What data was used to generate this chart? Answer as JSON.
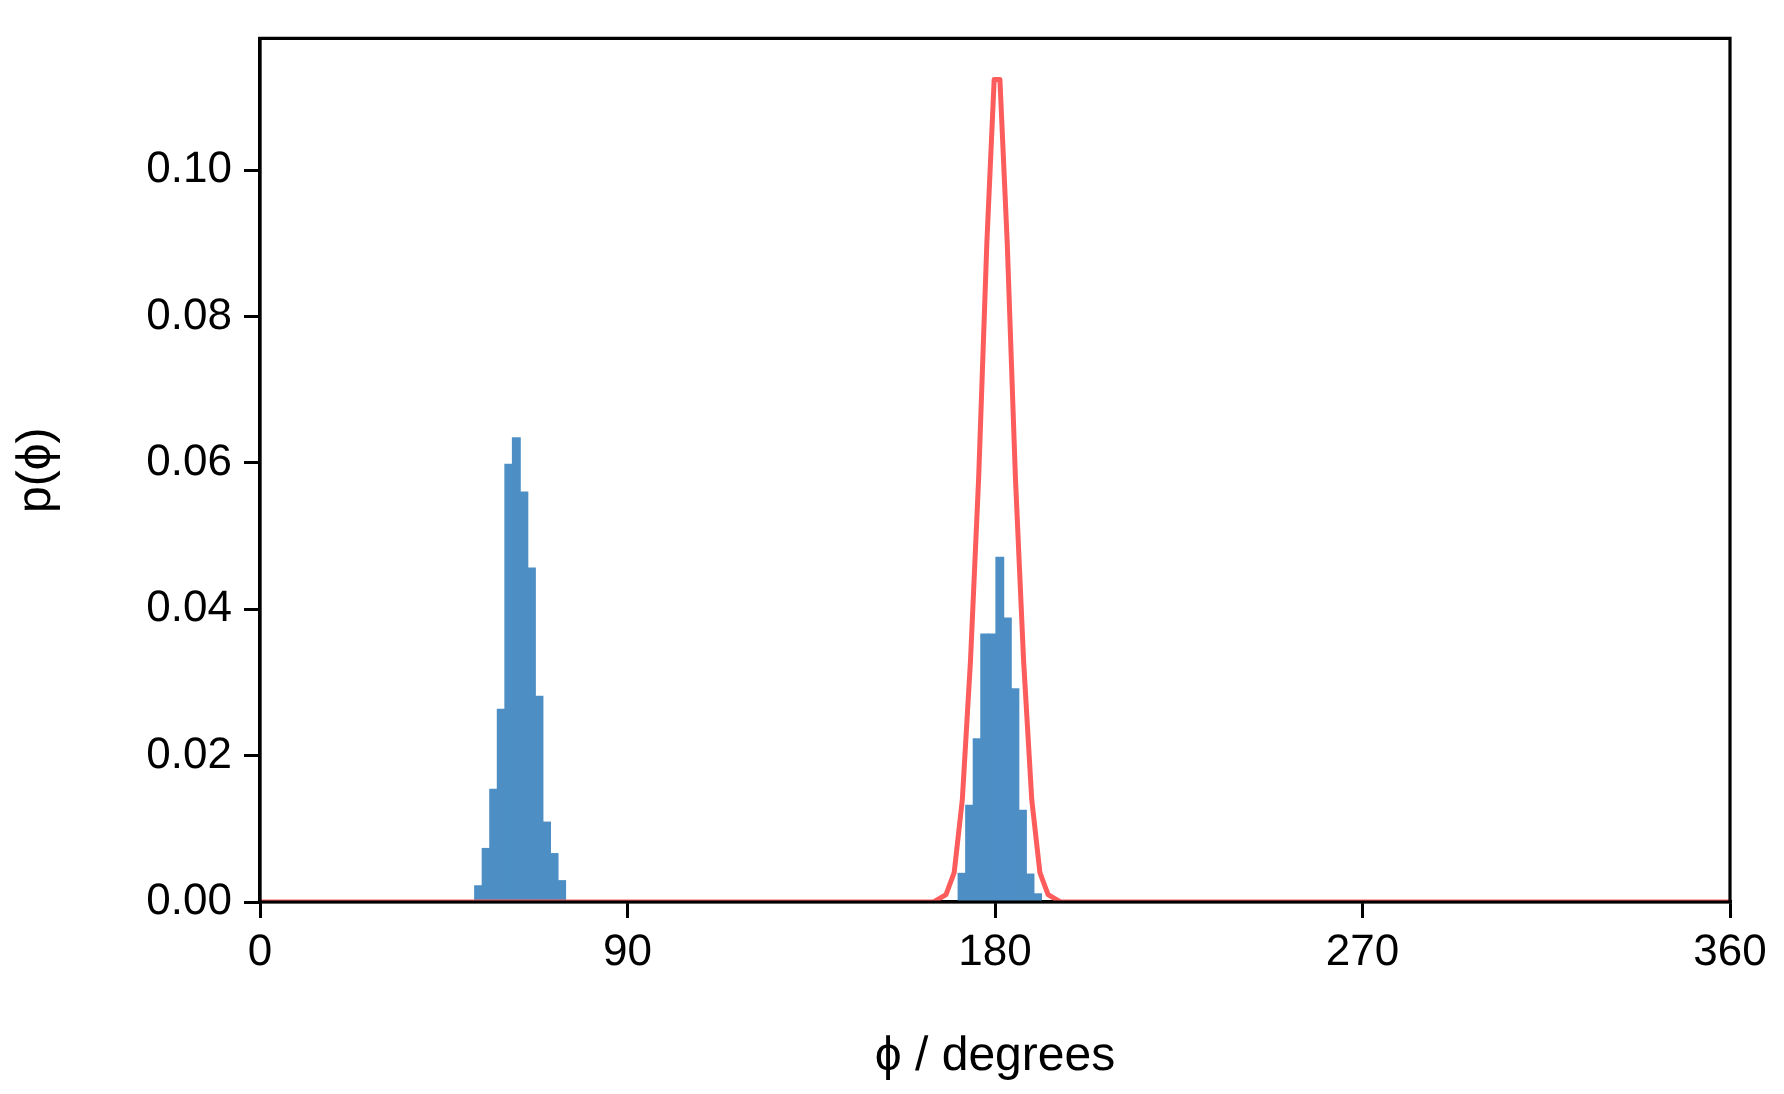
{
  "chart_data": {
    "type": "histogram",
    "xlabel": "ϕ / degrees",
    "ylabel": "p(ϕ)",
    "bins": [
      52.6,
      54.45,
      56.3,
      58.15,
      60,
      61.85,
      63.7,
      65.55,
      67.4,
      69.25,
      71.1,
      72.95,
      74.8,
      76.65,
      78.5,
      80.35,
      82.2,
      84.05,
      85.9,
      87.75,
      89.6,
      91.45,
      93.3,
      95.15,
      97,
      98.85,
      100.7,
      102.55,
      104.4,
      106.25,
      108.1,
      109.95,
      111.8,
      113.65,
      115.5,
      117.35,
      119.2,
      121.05,
      122.9,
      124.75,
      126.6,
      128.45,
      130.3,
      132.15,
      134,
      135.85,
      137.7,
      139.55,
      141.4,
      143.25,
      145.1,
      146.95,
      148.8,
      150.65,
      152.5,
      154.35,
      156.2,
      158.05,
      159.9,
      161.75,
      163.6,
      165.45,
      167.3,
      169.15,
      171,
      172.85,
      174.7,
      176.55,
      178.4,
      180.25,
      182.1,
      183.95,
      185.8,
      187.65,
      189.5,
      191.35
    ],
    "values": [
      0.0022,
      0.0073,
      0.0154,
      0.0263,
      0.0598,
      0.0634,
      0.056,
      0.0456,
      0.0281,
      0.0109,
      0.0066,
      0.0029,
      0,
      0,
      0,
      0,
      0,
      0,
      0,
      0,
      0,
      0,
      0,
      0,
      0,
      0,
      0,
      0,
      0,
      0,
      0,
      0,
      0,
      0,
      0,
      0,
      0,
      0,
      0,
      0,
      0,
      0,
      0,
      0,
      0,
      0,
      0,
      0,
      0,
      0,
      0,
      0,
      0,
      0,
      0,
      0,
      0,
      0,
      0,
      0,
      0,
      0,
      0,
      0,
      0.0039,
      0.0132,
      0.0223,
      0.0366,
      0.0366,
      0.0471,
      0.0388,
      0.0291,
      0.0125,
      0.0038,
      0.0011
    ],
    "color": "#4d8fc5",
    "series": [
      {
        "type": "line",
        "color": "#fc5c5c",
        "x": [
          0,
          165,
          168,
          170,
          172,
          174,
          176,
          178,
          179.8,
          181.2,
          183,
          185,
          187,
          189,
          191,
          193,
          196,
          360
        ],
        "values": [
          0,
          0,
          0.001,
          0.004,
          0.014,
          0.033,
          0.058,
          0.09,
          0.1124,
          0.1124,
          0.09,
          0.058,
          0.033,
          0.014,
          0.004,
          0.001,
          0,
          0
        ]
      }
    ],
    "xlim": [
      0,
      360
    ],
    "xticks": [
      0,
      90,
      180,
      270,
      360
    ],
    "ylim": [
      0,
      0.118
    ],
    "yticks": [
      {
        "value": 0,
        "label": "0.00"
      },
      {
        "value": 0.02,
        "label": "0.02"
      },
      {
        "value": 0.04,
        "label": "0.04"
      },
      {
        "value": 0.06,
        "label": "0.06"
      },
      {
        "value": 0.08,
        "label": "0.08"
      },
      {
        "value": 0.1,
        "label": "0.10"
      }
    ],
    "grid": false,
    "legend": false,
    "marker": "none",
    "line_style": "solid"
  }
}
